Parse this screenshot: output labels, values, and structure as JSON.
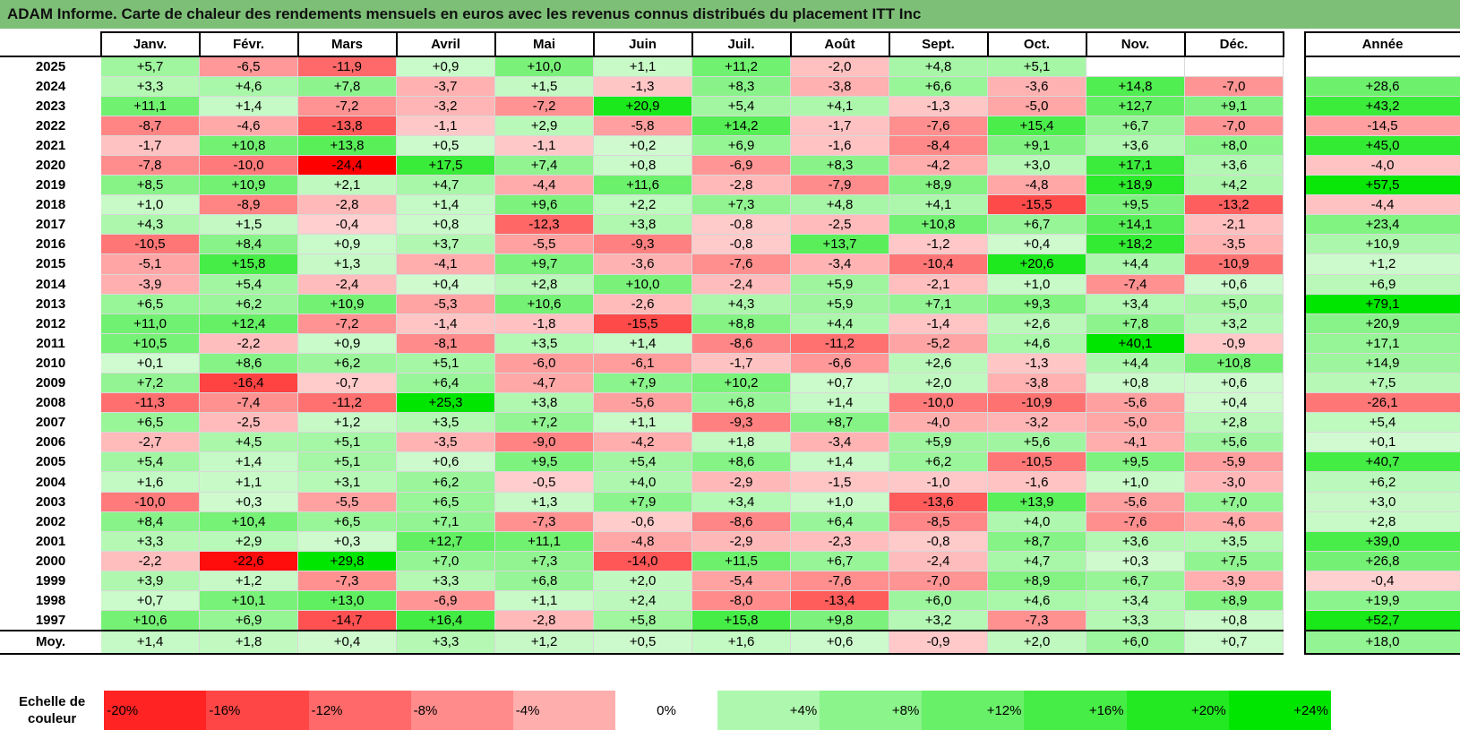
{
  "title": "ADAM Informe. Carte de chaleur des rendements mensuels en euros avec les revenus connus distribués du placement ITT Inc",
  "colors": {
    "negative_max": "#ff0000",
    "neutral": "#ffffff",
    "positive_max": "#00e000",
    "title_bg": "#7dbf76"
  },
  "chart_data": {
    "type": "heatmap",
    "title": "ADAM Informe. Carte de chaleur des rendements mensuels en euros avec les revenus connus distribués du placement ITT Inc",
    "columns": [
      "Janv.",
      "Févr.",
      "Mars",
      "Avril",
      "Mai",
      "Juin",
      "Juil.",
      "Août",
      "Sept.",
      "Oct.",
      "Nov.",
      "Déc."
    ],
    "annual_header": "Année",
    "rows": [
      {
        "year": "2025",
        "values": [
          "+5,7",
          "-6,5",
          "-11,9",
          "+0,9",
          "+10,0",
          "+1,1",
          "+11,2",
          "-2,0",
          "+4,8",
          "+5,1",
          "",
          ""
        ],
        "annual": ""
      },
      {
        "year": "2024",
        "values": [
          "+3,3",
          "+4,6",
          "+7,8",
          "-3,7",
          "+1,5",
          "-1,3",
          "+8,3",
          "-3,8",
          "+6,6",
          "-3,6",
          "+14,8",
          "-7,0"
        ],
        "annual": "+28,6"
      },
      {
        "year": "2023",
        "values": [
          "+11,1",
          "+1,4",
          "-7,2",
          "-3,2",
          "-7,2",
          "+20,9",
          "+5,4",
          "+4,1",
          "-1,3",
          "-5,0",
          "+12,7",
          "+9,1"
        ],
        "annual": "+43,2"
      },
      {
        "year": "2022",
        "values": [
          "-8,7",
          "-4,6",
          "-13,8",
          "-1,1",
          "+2,9",
          "-5,8",
          "+14,2",
          "-1,7",
          "-7,6",
          "+15,4",
          "+6,7",
          "-7,0"
        ],
        "annual": "-14,5"
      },
      {
        "year": "2021",
        "values": [
          "-1,7",
          "+10,8",
          "+13,8",
          "+0,5",
          "-1,1",
          "+0,2",
          "+6,9",
          "-1,6",
          "-8,4",
          "+9,1",
          "+3,6",
          "+8,0"
        ],
        "annual": "+45,0"
      },
      {
        "year": "2020",
        "values": [
          "-7,8",
          "-10,0",
          "-24,4",
          "+17,5",
          "+7,4",
          "+0,8",
          "-6,9",
          "+8,3",
          "-4,2",
          "+3,0",
          "+17,1",
          "+3,6"
        ],
        "annual": "-4,0"
      },
      {
        "year": "2019",
        "values": [
          "+8,5",
          "+10,9",
          "+2,1",
          "+4,7",
          "-4,4",
          "+11,6",
          "-2,8",
          "-7,9",
          "+8,9",
          "-4,8",
          "+18,9",
          "+4,2"
        ],
        "annual": "+57,5"
      },
      {
        "year": "2018",
        "values": [
          "+1,0",
          "-8,9",
          "-2,8",
          "+1,4",
          "+9,6",
          "+2,2",
          "+7,3",
          "+4,8",
          "+4,1",
          "-15,5",
          "+9,5",
          "-13,2"
        ],
        "annual": "-4,4"
      },
      {
        "year": "2017",
        "values": [
          "+4,3",
          "+1,5",
          "-0,4",
          "+0,8",
          "-12,3",
          "+3,8",
          "-0,8",
          "-2,5",
          "+10,8",
          "+6,7",
          "+14,1",
          "-2,1"
        ],
        "annual": "+23,4"
      },
      {
        "year": "2016",
        "values": [
          "-10,5",
          "+8,4",
          "+0,9",
          "+3,7",
          "-5,5",
          "-9,3",
          "-0,8",
          "+13,7",
          "-1,2",
          "+0,4",
          "+18,2",
          "-3,5"
        ],
        "annual": "+10,9"
      },
      {
        "year": "2015",
        "values": [
          "-5,1",
          "+15,8",
          "+1,3",
          "-4,1",
          "+9,7",
          "-3,6",
          "-7,6",
          "-3,4",
          "-10,4",
          "+20,6",
          "+4,4",
          "-10,9"
        ],
        "annual": "+1,2"
      },
      {
        "year": "2014",
        "values": [
          "-3,9",
          "+5,4",
          "-2,4",
          "+0,4",
          "+2,8",
          "+10,0",
          "-2,4",
          "+5,9",
          "-2,1",
          "+1,0",
          "-7,4",
          "+0,6"
        ],
        "annual": "+6,9"
      },
      {
        "year": "2013",
        "values": [
          "+6,5",
          "+6,2",
          "+10,9",
          "-5,3",
          "+10,6",
          "-2,6",
          "+4,3",
          "+5,9",
          "+7,1",
          "+9,3",
          "+3,4",
          "+5,0"
        ],
        "annual": "+79,1"
      },
      {
        "year": "2012",
        "values": [
          "+11,0",
          "+12,4",
          "-7,2",
          "-1,4",
          "-1,8",
          "-15,5",
          "+8,8",
          "+4,4",
          "-1,4",
          "+2,6",
          "+7,8",
          "+3,2"
        ],
        "annual": "+20,9"
      },
      {
        "year": "2011",
        "values": [
          "+10,5",
          "-2,2",
          "+0,9",
          "-8,1",
          "+3,5",
          "+1,4",
          "-8,6",
          "-11,2",
          "-5,2",
          "+4,6",
          "+40,1",
          "-0,9"
        ],
        "annual": "+17,1"
      },
      {
        "year": "2010",
        "values": [
          "+0,1",
          "+8,6",
          "+6,2",
          "+5,1",
          "-6,0",
          "-6,1",
          "-1,7",
          "-6,6",
          "+2,6",
          "-1,3",
          "+4,4",
          "+10,8"
        ],
        "annual": "+14,9"
      },
      {
        "year": "2009",
        "values": [
          "+7,2",
          "-16,4",
          "-0,7",
          "+6,4",
          "-4,7",
          "+7,9",
          "+10,2",
          "+0,7",
          "+2,0",
          "-3,8",
          "+0,8",
          "+0,6"
        ],
        "annual": "+7,5"
      },
      {
        "year": "2008",
        "values": [
          "-11,3",
          "-7,4",
          "-11,2",
          "+25,3",
          "+3,8",
          "-5,6",
          "+6,8",
          "+1,4",
          "-10,0",
          "-10,9",
          "-5,6",
          "+0,4"
        ],
        "annual": "-26,1"
      },
      {
        "year": "2007",
        "values": [
          "+6,5",
          "-2,5",
          "+1,2",
          "+3,5",
          "+7,2",
          "+1,1",
          "-9,3",
          "+8,7",
          "-4,0",
          "-3,2",
          "-5,0",
          "+2,8"
        ],
        "annual": "+5,4"
      },
      {
        "year": "2006",
        "values": [
          "-2,7",
          "+4,5",
          "+5,1",
          "-3,5",
          "-9,0",
          "-4,2",
          "+1,8",
          "-3,4",
          "+5,9",
          "+5,6",
          "-4,1",
          "+5,6"
        ],
        "annual": "+0,1"
      },
      {
        "year": "2005",
        "values": [
          "+5,4",
          "+1,4",
          "+5,1",
          "+0,6",
          "+9,5",
          "+5,4",
          "+8,6",
          "+1,4",
          "+6,2",
          "-10,5",
          "+9,5",
          "-5,9"
        ],
        "annual": "+40,7"
      },
      {
        "year": "2004",
        "values": [
          "+1,6",
          "+1,1",
          "+3,1",
          "+6,2",
          "-0,5",
          "+4,0",
          "-2,9",
          "-1,5",
          "-1,0",
          "-1,6",
          "+1,0",
          "-3,0"
        ],
        "annual": "+6,2"
      },
      {
        "year": "2003",
        "values": [
          "-10,0",
          "+0,3",
          "-5,5",
          "+6,5",
          "+1,3",
          "+7,9",
          "+3,4",
          "+1,0",
          "-13,6",
          "+13,9",
          "-5,6",
          "+7,0"
        ],
        "annual": "+3,0"
      },
      {
        "year": "2002",
        "values": [
          "+8,4",
          "+10,4",
          "+6,5",
          "+7,1",
          "-7,3",
          "-0,6",
          "-8,6",
          "+6,4",
          "-8,5",
          "+4,0",
          "-7,6",
          "-4,6"
        ],
        "annual": "+2,8"
      },
      {
        "year": "2001",
        "values": [
          "+3,3",
          "+2,9",
          "+0,3",
          "+12,7",
          "+11,1",
          "-4,8",
          "-2,9",
          "-2,3",
          "-0,8",
          "+8,7",
          "+3,6",
          "+3,5"
        ],
        "annual": "+39,0"
      },
      {
        "year": "2000",
        "values": [
          "-2,2",
          "-22,6",
          "+29,8",
          "+7,0",
          "+7,3",
          "-14,0",
          "+11,5",
          "+6,7",
          "-2,4",
          "+4,7",
          "+0,3",
          "+7,5"
        ],
        "annual": "+26,8"
      },
      {
        "year": "1999",
        "values": [
          "+3,9",
          "+1,2",
          "-7,3",
          "+3,3",
          "+6,8",
          "+2,0",
          "-5,4",
          "-7,6",
          "-7,0",
          "+8,9",
          "+6,7",
          "-3,9"
        ],
        "annual": "-0,4"
      },
      {
        "year": "1998",
        "values": [
          "+0,7",
          "+10,1",
          "+13,0",
          "-6,9",
          "+1,1",
          "+2,4",
          "-8,0",
          "-13,4",
          "+6,0",
          "+4,6",
          "+3,4",
          "+8,9"
        ],
        "annual": "+19,9"
      },
      {
        "year": "1997",
        "values": [
          "+10,6",
          "+6,9",
          "-14,7",
          "+16,4",
          "-2,8",
          "+5,8",
          "+15,8",
          "+9,8",
          "+3,2",
          "-7,3",
          "+3,3",
          "+0,8"
        ],
        "annual": "+52,7"
      }
    ],
    "average": {
      "label": "Moy.",
      "values": [
        "+1,4",
        "+1,8",
        "+0,4",
        "+3,3",
        "+1,2",
        "+0,5",
        "+1,6",
        "+0,6",
        "-0,9",
        "+2,0",
        "+6,0",
        "+0,7"
      ],
      "annual": "+18,0"
    },
    "color_scale": {
      "label": "Echelle de couleur",
      "stops": [
        "-20%",
        "-16%",
        "-12%",
        "-8%",
        "-4%",
        "0%",
        "+4%",
        "+8%",
        "+12%",
        "+16%",
        "+20%",
        "+24%"
      ]
    }
  }
}
